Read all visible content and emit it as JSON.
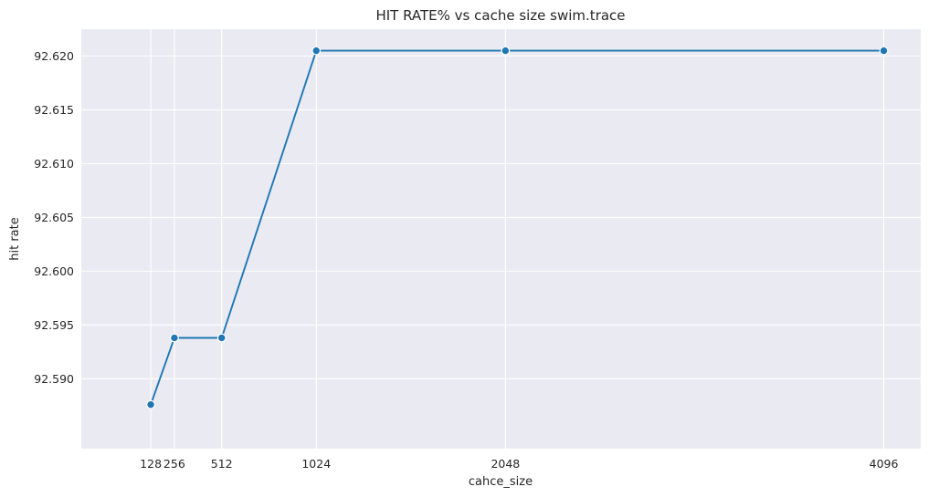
{
  "chart_data": {
    "type": "line",
    "title": "HIT RATE% vs cache size swim.trace",
    "xlabel": "cahce_size",
    "ylabel": "hit rate",
    "x": [
      128,
      256,
      512,
      1024,
      2048,
      4096
    ],
    "x_tick_labels": [
      "128",
      "256",
      "512",
      "1024",
      "2048",
      "4096"
    ],
    "y": [
      92.5876,
      92.5938,
      92.5938,
      92.6205,
      92.6205,
      92.6205
    ],
    "xlim": [
      -248,
      4296
    ],
    "ylim": [
      92.5835,
      92.6225
    ],
    "y_ticks": [
      92.59,
      92.595,
      92.6,
      92.605,
      92.61,
      92.615,
      92.62
    ],
    "y_tick_labels": [
      "92.590",
      "92.595",
      "92.600",
      "92.605",
      "92.610",
      "92.615",
      "92.620"
    ],
    "grid": true,
    "background": "#eaeaf2",
    "line_color": "#1f77b4"
  }
}
